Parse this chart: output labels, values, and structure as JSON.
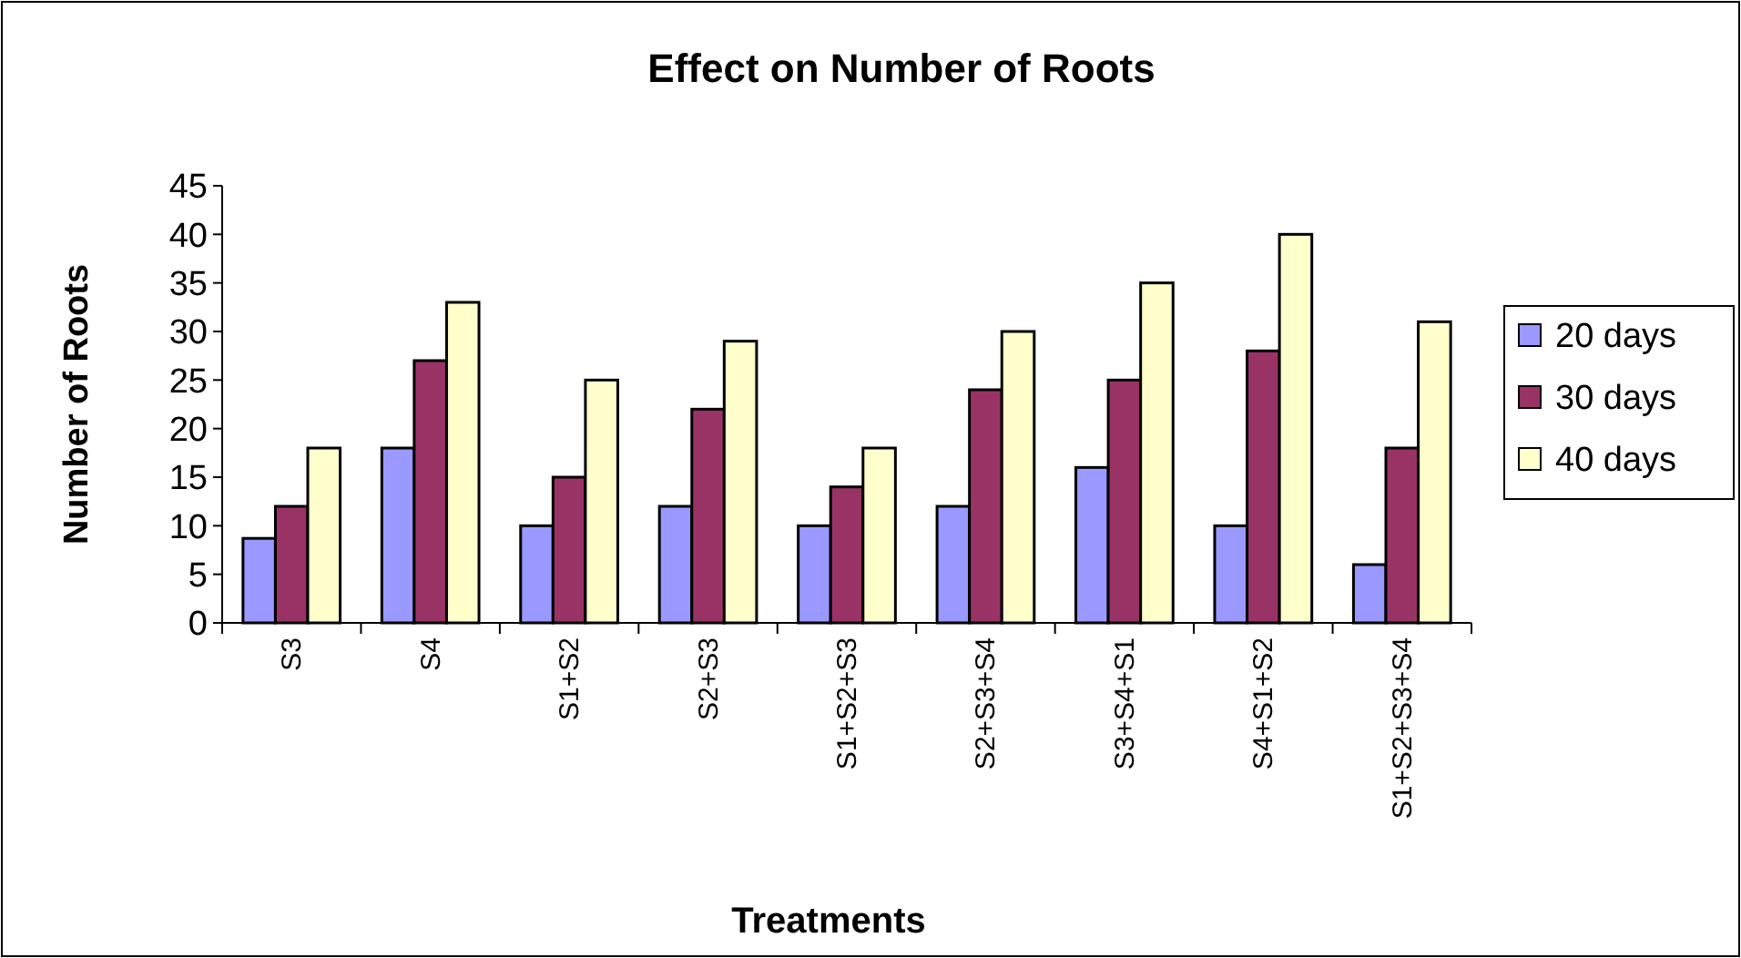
{
  "chart_data": {
    "type": "bar",
    "title": "Effect on Number of Roots",
    "xlabel": "Treatments",
    "ylabel": "Number of Roots",
    "categories": [
      "S3",
      "S4",
      "S1+S2",
      "S2+S3",
      "S1+S2+S3",
      "S2+S3+S4",
      "S3+S4+S1",
      "S4+S1+S2",
      "S1+S2+S3+S4"
    ],
    "series": [
      {
        "name": "20 days",
        "color": "#9999ff",
        "values": [
          8.7,
          18,
          10,
          12,
          10,
          12,
          16,
          10,
          6
        ]
      },
      {
        "name": "30 days",
        "color": "#993366",
        "values": [
          12,
          27,
          15,
          22,
          14,
          24,
          25,
          28,
          18
        ]
      },
      {
        "name": "40 days",
        "color": "#ffffcc",
        "values": [
          18,
          33,
          25,
          29,
          18,
          30,
          35,
          40,
          31
        ]
      }
    ],
    "ylim": [
      0,
      45
    ],
    "yticks": [
      0,
      5,
      10,
      15,
      20,
      25,
      30,
      35,
      40,
      45
    ],
    "grid": false,
    "legend": "right"
  }
}
